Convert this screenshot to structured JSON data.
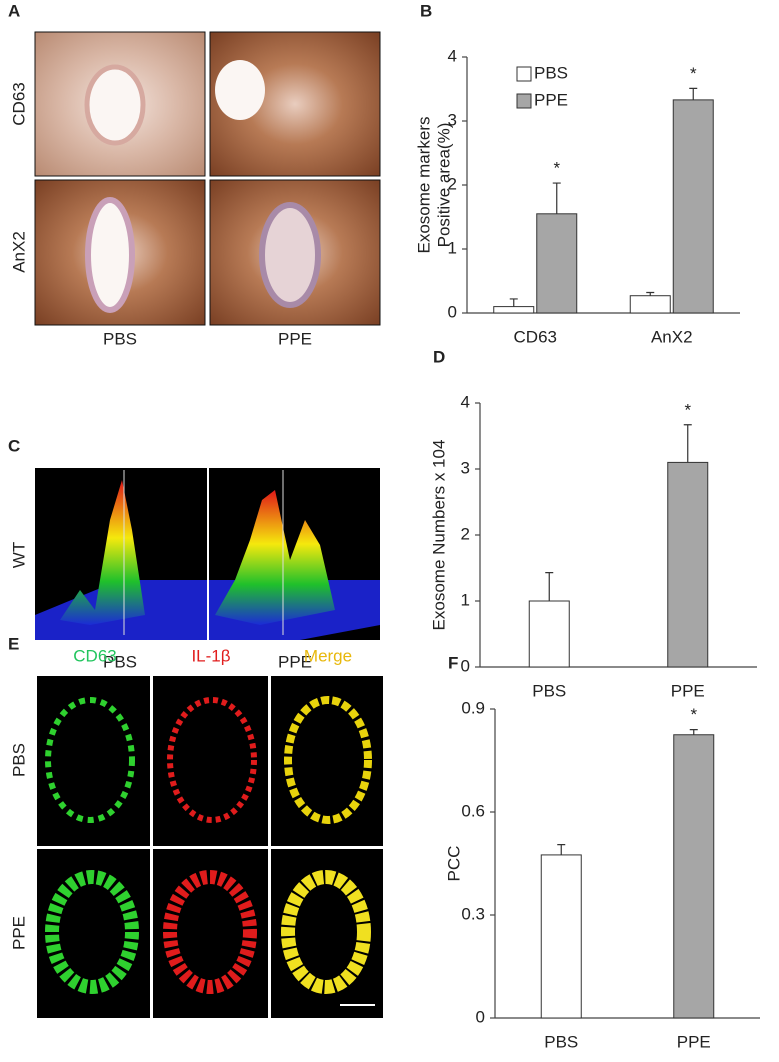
{
  "panels": {
    "A": {
      "label": "A",
      "rows": [
        "CD63",
        "AnX2"
      ],
      "columns": [
        "PBS",
        "PPE"
      ]
    },
    "C": {
      "label": "C",
      "rows": [
        "WT"
      ],
      "columns": [
        "PBS",
        "PPE"
      ]
    },
    "E": {
      "label": "E",
      "columns": [
        "CD63",
        "IL-1β",
        "Merge"
      ],
      "rows": [
        "PBS",
        "PPE"
      ]
    }
  },
  "chart_data": [
    {
      "type": "bar",
      "panel": "B",
      "ylabel": [
        "Exosome markers",
        "Positive area(%)"
      ],
      "categories": [
        "CD63",
        "AnX2"
      ],
      "series": [
        {
          "name": "PBS",
          "color": "#ffffff",
          "values": [
            0.1,
            0.27
          ],
          "errors": [
            0.12,
            0.05
          ],
          "annotations": [
            null,
            null
          ]
        },
        {
          "name": "PPE",
          "color": "#a6a6a6",
          "values": [
            1.55,
            3.33
          ],
          "errors": [
            0.48,
            0.18
          ],
          "annotations": [
            "*",
            "*"
          ]
        }
      ],
      "ylim": [
        0,
        4
      ],
      "yticks": [
        0,
        1,
        2,
        3,
        4
      ],
      "legend": "upper left"
    },
    {
      "type": "bar",
      "panel": "D",
      "ylabel": [
        "Exosome Numbers  x 104"
      ],
      "categories": [
        "PBS",
        "PPE"
      ],
      "series": [
        {
          "colors": [
            "#ffffff",
            "#a6a6a6"
          ],
          "values": [
            1.0,
            3.1
          ],
          "errors": [
            0.43,
            0.57
          ],
          "annotations": [
            null,
            "*"
          ]
        }
      ],
      "ylim": [
        0,
        4
      ],
      "yticks": [
        0,
        1,
        2,
        3,
        4
      ]
    },
    {
      "type": "bar",
      "panel": "F",
      "ylabel": [
        "PCC"
      ],
      "categories": [
        "PBS",
        "PPE"
      ],
      "series": [
        {
          "colors": [
            "#ffffff",
            "#a6a6a6"
          ],
          "values": [
            0.475,
            0.825
          ],
          "errors": [
            0.03,
            0.015
          ],
          "annotations": [
            null,
            "*"
          ]
        }
      ],
      "ylim": [
        0,
        0.9
      ],
      "yticks": [
        0,
        0.3,
        0.6,
        0.9
      ]
    }
  ]
}
